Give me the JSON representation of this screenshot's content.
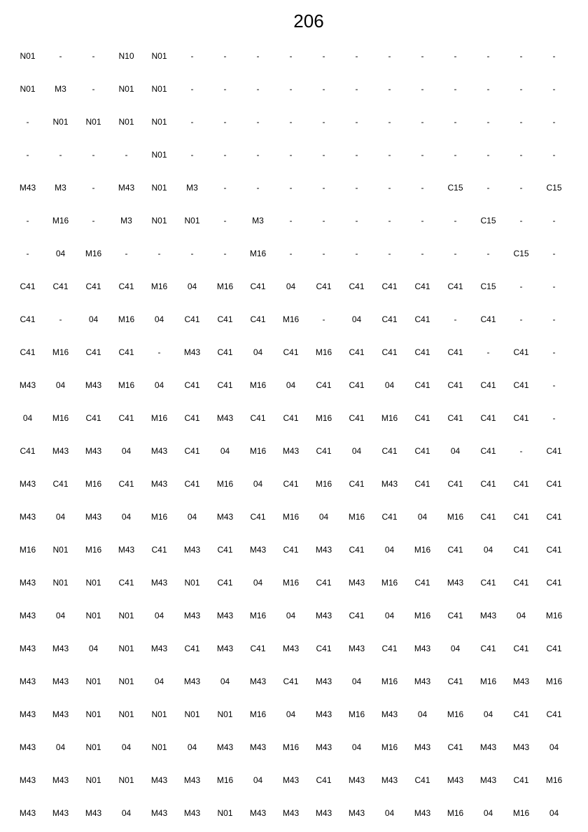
{
  "document": {
    "title": "206",
    "rows": [
      [
        "N01",
        "-",
        "-",
        "N10",
        "N01",
        "-",
        "-",
        "-",
        "-",
        "-",
        "-",
        "-",
        "-",
        "-",
        "-",
        "-",
        "-"
      ],
      [
        "N01",
        "M3",
        "-",
        "N01",
        "N01",
        "-",
        "-",
        "-",
        "-",
        "-",
        "-",
        "-",
        "-",
        "-",
        "-",
        "-",
        "-"
      ],
      [
        "-",
        "N01",
        "N01",
        "N01",
        "N01",
        "-",
        "-",
        "-",
        "-",
        "-",
        "-",
        "-",
        "-",
        "-",
        "-",
        "-",
        "-"
      ],
      [
        "-",
        "-",
        "-",
        "-",
        "N01",
        "-",
        "-",
        "-",
        "-",
        "-",
        "-",
        "-",
        "-",
        "-",
        "-",
        "-",
        "-"
      ],
      [
        "M43",
        "M3",
        "-",
        "M43",
        "N01",
        "M3",
        "-",
        "-",
        "-",
        "-",
        "-",
        "-",
        "-",
        "C15",
        "-",
        "-",
        "C15"
      ],
      [
        "-",
        "M16",
        "-",
        "M3",
        "N01",
        "N01",
        "-",
        "M3",
        "-",
        "-",
        "-",
        "-",
        "-",
        "-",
        "C15",
        "-",
        "-"
      ],
      [
        "-",
        "04",
        "M16",
        "-",
        "-",
        "-",
        "-",
        "M16",
        "-",
        "-",
        "-",
        "-",
        "-",
        "-",
        "-",
        "C15",
        "-"
      ],
      [
        "C41",
        "C41",
        "C41",
        "C41",
        "M16",
        "04",
        "M16",
        "C41",
        "04",
        "C41",
        "C41",
        "C41",
        "C41",
        "C41",
        "C15",
        "-",
        "-"
      ],
      [
        "C41",
        "-",
        "04",
        "M16",
        "04",
        "C41",
        "C41",
        "C41",
        "M16",
        "-",
        "04",
        "C41",
        "C41",
        "-",
        "C41",
        "-",
        "-"
      ],
      [
        "C41",
        "M16",
        "C41",
        "C41",
        "-",
        "M43",
        "C41",
        "04",
        "C41",
        "M16",
        "C41",
        "C41",
        "C41",
        "C41",
        "-",
        "C41",
        "-"
      ],
      [
        "M43",
        "04",
        "M43",
        "M16",
        "04",
        "C41",
        "C41",
        "M16",
        "04",
        "C41",
        "C41",
        "04",
        "C41",
        "C41",
        "C41",
        "C41",
        "-"
      ],
      [
        "04",
        "M16",
        "C41",
        "C41",
        "M16",
        "C41",
        "M43",
        "C41",
        "C41",
        "M16",
        "C41",
        "M16",
        "C41",
        "C41",
        "C41",
        "C41",
        "-"
      ],
      [
        "C41",
        "M43",
        "M43",
        "04",
        "M43",
        "C41",
        "04",
        "M16",
        "M43",
        "C41",
        "04",
        "C41",
        "C41",
        "04",
        "C41",
        "-",
        "C41"
      ],
      [
        "M43",
        "C41",
        "M16",
        "C41",
        "M43",
        "C41",
        "M16",
        "04",
        "C41",
        "M16",
        "C41",
        "M43",
        "C41",
        "C41",
        "C41",
        "C41",
        "C41"
      ],
      [
        "M43",
        "04",
        "M43",
        "04",
        "M16",
        "04",
        "M43",
        "C41",
        "M16",
        "04",
        "M16",
        "C41",
        "04",
        "M16",
        "C41",
        "C41",
        "C41"
      ],
      [
        "M16",
        "N01",
        "M16",
        "M43",
        "C41",
        "M43",
        "C41",
        "M43",
        "C41",
        "M43",
        "C41",
        "04",
        "M16",
        "C41",
        "04",
        "C41",
        "C41"
      ],
      [
        "M43",
        "N01",
        "N01",
        "C41",
        "M43",
        "N01",
        "C41",
        "04",
        "M16",
        "C41",
        "M43",
        "M16",
        "C41",
        "M43",
        "C41",
        "C41",
        "C41"
      ],
      [
        "M43",
        "04",
        "N01",
        "N01",
        "04",
        "M43",
        "M43",
        "M16",
        "04",
        "M43",
        "C41",
        "04",
        "M16",
        "C41",
        "M43",
        "04",
        "M16"
      ],
      [
        "M43",
        "M43",
        "04",
        "N01",
        "M43",
        "C41",
        "M43",
        "C41",
        "M43",
        "C41",
        "M43",
        "C41",
        "M43",
        "04",
        "C41",
        "C41",
        "C41"
      ],
      [
        "M43",
        "M43",
        "N01",
        "N01",
        "04",
        "M43",
        "04",
        "M43",
        "C41",
        "M43",
        "04",
        "M16",
        "M43",
        "C41",
        "M16",
        "M43",
        "M16"
      ],
      [
        "M43",
        "M43",
        "N01",
        "N01",
        "N01",
        "N01",
        "N01",
        "M16",
        "04",
        "M43",
        "M16",
        "M43",
        "04",
        "M16",
        "04",
        "C41",
        "C41"
      ],
      [
        "M43",
        "04",
        "N01",
        "04",
        "N01",
        "04",
        "M43",
        "M43",
        "M16",
        "M43",
        "04",
        "M16",
        "M43",
        "C41",
        "M43",
        "M43",
        "04"
      ],
      [
        "M43",
        "M43",
        "N01",
        "N01",
        "M43",
        "M43",
        "M16",
        "04",
        "M43",
        "C41",
        "M43",
        "M43",
        "C41",
        "M43",
        "M43",
        "C41",
        "M16"
      ],
      [
        "M43",
        "M43",
        "M43",
        "04",
        "M43",
        "M43",
        "N01",
        "M43",
        "M43",
        "M43",
        "M43",
        "04",
        "M43",
        "M16",
        "04",
        "M16",
        "04"
      ]
    ]
  }
}
